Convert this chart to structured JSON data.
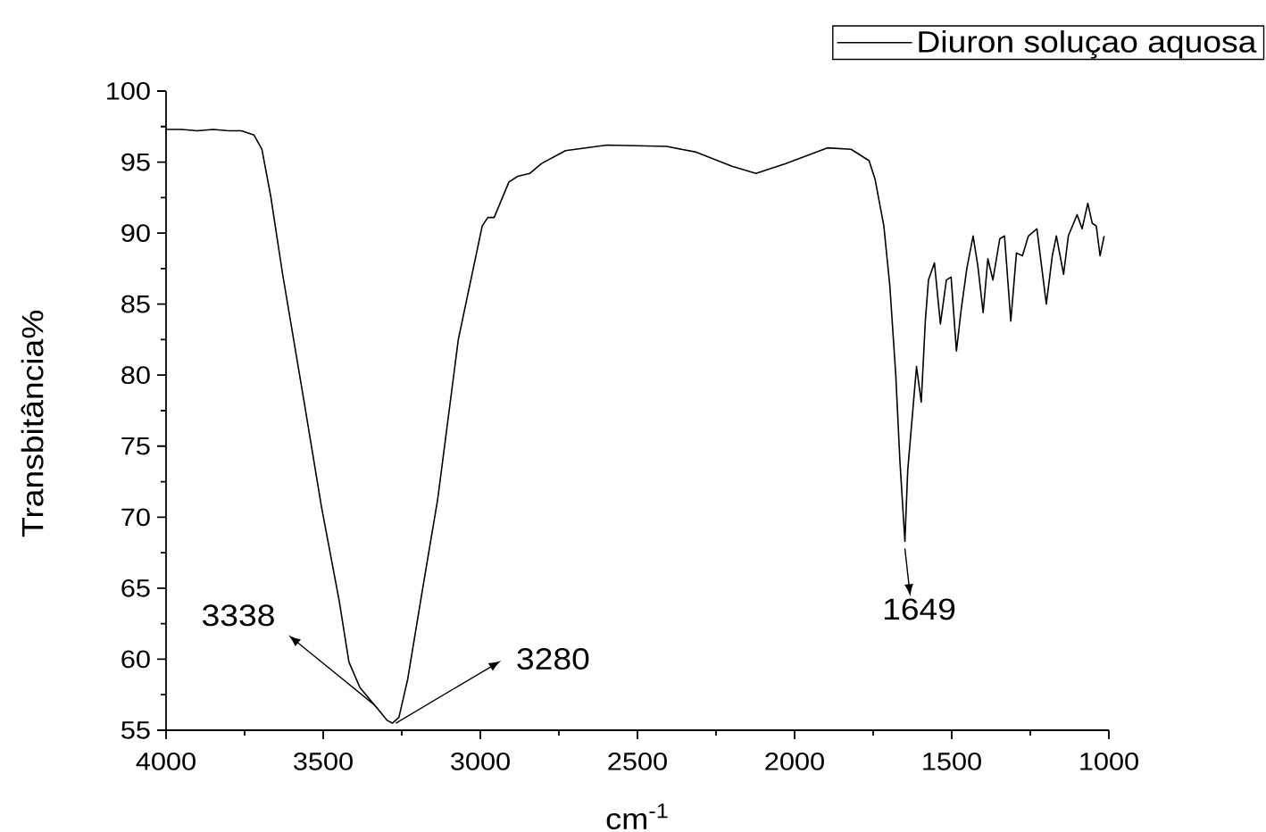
{
  "chart_data": {
    "type": "line",
    "xlabel": "cm$^{-1}$",
    "ylabel": "Transbitância%",
    "legend": "top right",
    "xlim": [
      4000,
      1000
    ],
    "ylim": [
      55,
      100
    ],
    "xticks": [
      4000,
      {
        "value": 3750,
        "label": null
      },
      3500,
      {
        "value": 3250,
        "label": null
      },
      3000,
      {
        "value": 2750,
        "label": null
      },
      2500,
      {
        "value": 2250,
        "label": null
      },
      2000,
      {
        "value": 1750,
        "label": null
      },
      1500,
      {
        "value": 1250,
        "label": null
      },
      1000
    ],
    "yticks": [
      55,
      {
        "value": 57.5,
        "label": null
      },
      60,
      {
        "value": 62.5,
        "label": null
      },
      65,
      {
        "value": 67.5,
        "label": null
      },
      70,
      {
        "value": 72.5,
        "label": null
      },
      75,
      {
        "value": 77.5,
        "label": null
      },
      80,
      {
        "value": 82.5,
        "label": null
      },
      85,
      {
        "value": 87.5,
        "label": null
      },
      90,
      {
        "value": 92.5,
        "label": null
      },
      95,
      {
        "value": 97.5,
        "label": null
      },
      100
    ],
    "x": [
      4000,
      3950,
      3900,
      3850,
      3800,
      3760,
      3720,
      3705,
      3695,
      3667,
      3629,
      3562,
      3506,
      3449,
      3418,
      3383,
      3338,
      3326,
      3297,
      3280,
      3259,
      3231,
      3184,
      3136,
      3070,
      2994,
      2976,
      2956,
      2909,
      2881,
      2843,
      2805,
      2729,
      2597,
      2407,
      2313,
      2199,
      2123,
      2028,
      1896,
      1820,
      1763,
      1744,
      1716,
      1697,
      1678,
      1665,
      1649,
      1640,
      1612,
      1597,
      1584,
      1574,
      1555,
      1536,
      1517,
      1502,
      1485,
      1470,
      1452,
      1432,
      1417,
      1400,
      1385,
      1369,
      1347,
      1332,
      1312,
      1294,
      1275,
      1256,
      1229,
      1199,
      1180,
      1167,
      1144,
      1129,
      1101,
      1085,
      1067,
      1053,
      1040,
      1028,
      1015
    ],
    "series": [
      {
        "name": "Diuron soluçao aquosa",
        "color": "#000000",
        "values": [
          97.3,
          97.3,
          97.2,
          97.3,
          97.2,
          97.2,
          96.9,
          96.3,
          95.9,
          92.6,
          87.1,
          78.3,
          70.8,
          64.1,
          59.8,
          58.0,
          56.8,
          56.5,
          55.7,
          55.5,
          55.9,
          58.6,
          64.9,
          71.2,
          82.5,
          90.5,
          91.1,
          91.1,
          93.6,
          94.0,
          94.2,
          94.9,
          95.8,
          96.2,
          96.1,
          95.7,
          94.7,
          94.2,
          94.9,
          96.0,
          95.9,
          95.1,
          93.8,
          90.5,
          86.3,
          80.0,
          74.0,
          68.3,
          73.3,
          80.6,
          78.1,
          83.8,
          86.7,
          87.9,
          83.6,
          86.7,
          86.9,
          81.7,
          84.6,
          87.5,
          89.8,
          87.7,
          84.4,
          88.2,
          86.7,
          89.6,
          89.8,
          83.8,
          88.6,
          88.4,
          89.8,
          90.3,
          85.0,
          88.4,
          89.8,
          87.1,
          89.8,
          91.3,
          90.3,
          92.1,
          90.7,
          90.5,
          88.4,
          89.8
        ]
      }
    ],
    "annotations": [
      {
        "text": "3338",
        "x": 3338,
        "y": 56.8
      },
      {
        "text": "3280",
        "x": 3280,
        "y": 55.5
      },
      {
        "text": "1649",
        "x": 1649,
        "y": 68.3
      }
    ]
  }
}
